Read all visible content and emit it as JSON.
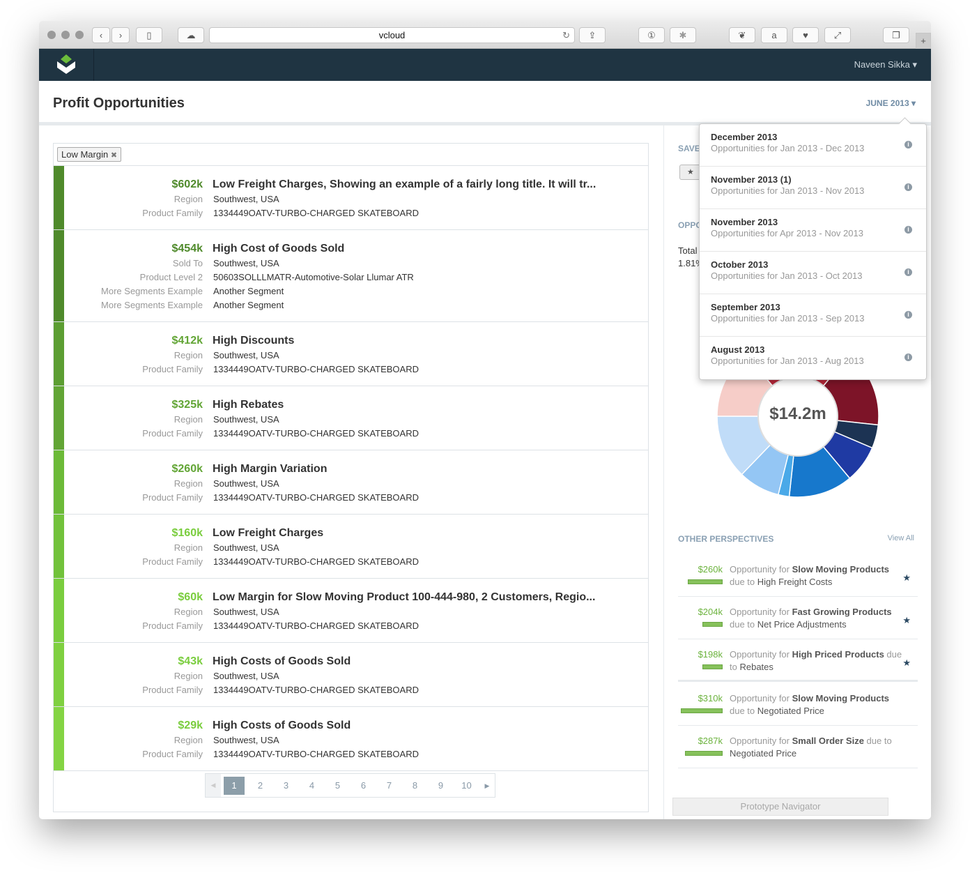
{
  "browser": {
    "url": "vcloud"
  },
  "nav": {
    "user": "Naveen Sikka"
  },
  "header": {
    "title": "Profit Opportunities",
    "month": "JUNE 2013"
  },
  "filter": {
    "chip": "Low Margin"
  },
  "opportunities": [
    {
      "amount": "$602k",
      "title": "Low Freight Charges, Showing an example of a fairly long title. It will tr...",
      "color": "#4f8a2b",
      "details": [
        {
          "label": "Region",
          "value": "Southwest, USA"
        },
        {
          "label": "Product Family",
          "value": "1334449OATV-TURBO-CHARGED SKATEBOARD"
        }
      ]
    },
    {
      "amount": "$454k",
      "title": "High Cost of Goods Sold",
      "color": "#4f8a2b",
      "details": [
        {
          "label": "Sold To",
          "value": "Southwest, USA"
        },
        {
          "label": "Product Level 2",
          "value": "50603SOLLLMATR-Automotive-Solar Llumar ATR"
        },
        {
          "label": "More Segments Example",
          "value": "Another Segment"
        },
        {
          "label": "More Segments Example",
          "value": "Another Segment"
        }
      ]
    },
    {
      "amount": "$412k",
      "title": "High Discounts",
      "color": "#5c9e32",
      "details": [
        {
          "label": "Region",
          "value": "Southwest, USA"
        },
        {
          "label": "Product Family",
          "value": "1334449OATV-TURBO-CHARGED SKATEBOARD"
        }
      ]
    },
    {
      "amount": "$325k",
      "title": "High Rebates",
      "color": "#62a535",
      "details": [
        {
          "label": "Region",
          "value": "Southwest, USA"
        },
        {
          "label": "Product Family",
          "value": "1334449OATV-TURBO-CHARGED SKATEBOARD"
        }
      ]
    },
    {
      "amount": "$260k",
      "title": "High Margin Variation",
      "color": "#6cba38",
      "details": [
        {
          "label": "Region",
          "value": "Southwest, USA"
        },
        {
          "label": "Product Family",
          "value": "1334449OATV-TURBO-CHARGED SKATEBOARD"
        }
      ]
    },
    {
      "amount": "$160k",
      "title": "Low Freight Charges",
      "color": "#72c23b",
      "details": [
        {
          "label": "Region",
          "value": "Southwest, USA"
        },
        {
          "label": "Product Family",
          "value": "1334449OATV-TURBO-CHARGED SKATEBOARD"
        }
      ]
    },
    {
      "amount": "$60k",
      "title": "Low Margin for Slow Moving Product 100-444-980, 2 Customers, Regio...",
      "color": "#7acd3e",
      "details": [
        {
          "label": "Region",
          "value": "Southwest, USA"
        },
        {
          "label": "Product Family",
          "value": "1334449OATV-TURBO-CHARGED SKATEBOARD"
        }
      ]
    },
    {
      "amount": "$43k",
      "title": "High Costs of Goods Sold",
      "color": "#7fd040",
      "details": [
        {
          "label": "Region",
          "value": "Southwest, USA"
        },
        {
          "label": "Product Family",
          "value": "1334449OATV-TURBO-CHARGED SKATEBOARD"
        }
      ]
    },
    {
      "amount": "$29k",
      "title": "High Costs of Goods Sold",
      "color": "#84d443",
      "details": [
        {
          "label": "Region",
          "value": "Southwest, USA"
        },
        {
          "label": "Product Family",
          "value": "1334449OATV-TURBO-CHARGED SKATEBOARD"
        }
      ]
    }
  ],
  "pagination": {
    "pages": [
      "1",
      "2",
      "3",
      "4",
      "5",
      "6",
      "7",
      "8",
      "9",
      "10"
    ],
    "current": "1"
  },
  "right": {
    "saved_label": "SAVE",
    "opp_label": "OPPO",
    "total_label": "Total",
    "total_pct": "1.81%"
  },
  "donut": {
    "center": "$14.2m",
    "slices": [
      {
        "share": 15.6,
        "color": "#7d1428"
      },
      {
        "share": 4.7,
        "color": "#1c3353"
      },
      {
        "share": 7.5,
        "color": "#1f3aa3"
      },
      {
        "share": 12.8,
        "color": "#1778cc"
      },
      {
        "share": 2.2,
        "color": "#4aa9e8"
      },
      {
        "share": 8.3,
        "color": "#94c6f4"
      },
      {
        "share": 12.8,
        "color": "#c0dcf8"
      },
      {
        "share": 13.9,
        "color": "#f6cdc8"
      },
      {
        "share": 22.2,
        "color": "#b8283a"
      }
    ]
  },
  "other_perspectives": {
    "title": "OTHER PERSPECTIVES",
    "view_all": "View All",
    "items": [
      {
        "amount": "$260k",
        "pre": "Opportunity for ",
        "bold": "Slow Moving Products",
        "mid": " due to ",
        "rest": "High Freight Costs",
        "bar_pct": 84,
        "starred": true
      },
      {
        "amount": "$204k",
        "pre": "Opportunity for ",
        "bold": "Fast Growing Products",
        "mid": " due to ",
        "rest": "Net Price Adjustments",
        "bar_pct": 48,
        "starred": true
      },
      {
        "amount": "$198k",
        "pre": "Opportunity for ",
        "bold": "High Priced Products",
        "mid": " due to ",
        "rest": "Rebates",
        "bar_pct": 48,
        "starred": true
      },
      {
        "amount": "$310k",
        "pre": "Opportunity for ",
        "bold": "Slow Moving Products",
        "mid": " due to ",
        "rest": "Negotiated Price",
        "bar_pct": 100,
        "starred": false
      },
      {
        "amount": "$287k",
        "pre": "Opportunity for ",
        "bold": "Small Order Size",
        "mid": " due to ",
        "rest": "Negotiated Price",
        "bar_pct": 90,
        "starred": false
      }
    ]
  },
  "month_dropdown": [
    {
      "title": "December 2013",
      "sub": "Opportunities for Jan 2013 - Dec 2013"
    },
    {
      "title": "November 2013 (1)",
      "sub": "Opportunities for Jan 2013 - Nov 2013"
    },
    {
      "title": "November 2013",
      "sub": "Opportunities for Apr 2013 - Nov 2013"
    },
    {
      "title": "October 2013",
      "sub": "Opportunities for Jan 2013 - Oct 2013"
    },
    {
      "title": "September 2013",
      "sub": "Opportunities for Jan 2013 - Sep 2013"
    },
    {
      "title": "August 2013",
      "sub": "Opportunities for Jan 2013 - Aug 2013"
    }
  ],
  "prototype_navigator": "Prototype Navigator"
}
